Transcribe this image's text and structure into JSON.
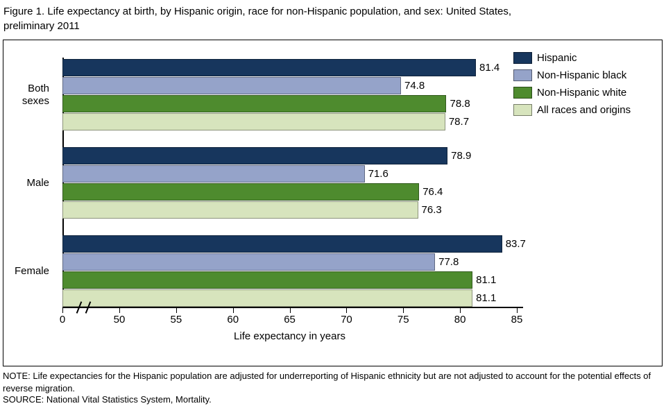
{
  "figure": {
    "title_line1": "Figure 1. Life expectancy at birth, by Hispanic origin, race for non-Hispanic population, and sex: United States,",
    "title_line2": "preliminary 2011",
    "note": "NOTE: Life expectancies for the Hispanic population are adjusted for underreporting of Hispanic ethnicity but are not adjusted to account for the potential effects of reverse migration.",
    "source": "SOURCE: National Vital Statistics System, Mortality."
  },
  "chart_data": {
    "type": "bar",
    "orientation": "horizontal",
    "title": "Figure 1. Life expectancy at birth, by Hispanic origin, race for non-Hispanic population, and sex: United States, preliminary 2011",
    "categories": [
      "Both sexes",
      "Male",
      "Female"
    ],
    "series": [
      {
        "name": "Hispanic",
        "color": "#17365D",
        "values": [
          81.4,
          78.9,
          83.7
        ]
      },
      {
        "name": "Non-Hispanic black",
        "color": "#95A3C9",
        "values": [
          74.8,
          71.6,
          77.8
        ]
      },
      {
        "name": "Non-Hispanic white",
        "color": "#4E8B2E",
        "values": [
          78.8,
          76.4,
          81.1
        ]
      },
      {
        "name": "All races and origins",
        "color": "#D7E4BD",
        "values": [
          78.7,
          76.3,
          81.1
        ]
      }
    ],
    "xlabel": "Life expectancy in years",
    "x_ticks": [
      50,
      55,
      60,
      65,
      70,
      75,
      80,
      85
    ],
    "x_origin_tick": "0",
    "axis_break_between": [
      0,
      50
    ],
    "xlim": [
      50,
      85
    ],
    "value_labels_shown": true,
    "legend_position": "top-right",
    "grid": false
  }
}
